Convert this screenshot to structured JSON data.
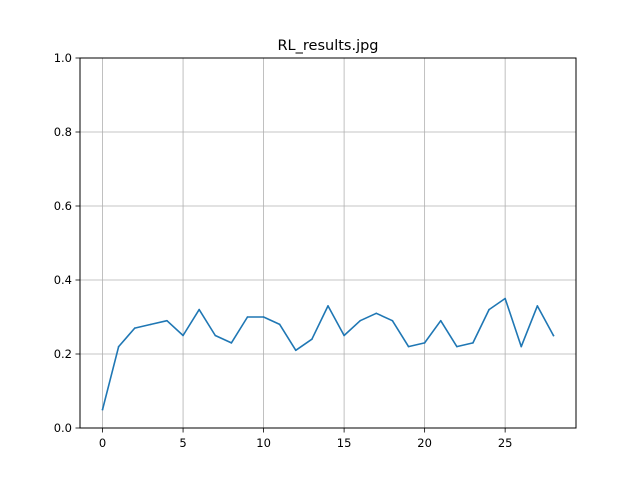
{
  "chart_data": {
    "type": "line",
    "title": "RL_results.jpg",
    "xlabel": "",
    "ylabel": "",
    "xlim": [
      -1.4,
      29.4
    ],
    "ylim": [
      0.0,
      1.0
    ],
    "x_ticks": [
      0,
      5,
      10,
      15,
      20,
      25
    ],
    "y_ticks": [
      0.0,
      0.2,
      0.4,
      0.6,
      0.8,
      1.0
    ],
    "x_tick_labels": [
      "0",
      "5",
      "10",
      "15",
      "20",
      "25"
    ],
    "y_tick_labels": [
      "0.0",
      "0.2",
      "0.4",
      "0.6",
      "0.8",
      "1.0"
    ],
    "grid": true,
    "series": [
      {
        "color": "#1f77b4",
        "x": [
          0,
          1,
          2,
          3,
          4,
          5,
          6,
          7,
          8,
          9,
          10,
          11,
          12,
          13,
          14,
          15,
          16,
          17,
          18,
          19,
          20,
          21,
          22,
          23,
          24,
          25,
          26,
          27,
          28
        ],
        "y": [
          0.05,
          0.22,
          0.27,
          0.28,
          0.29,
          0.25,
          0.32,
          0.25,
          0.23,
          0.3,
          0.3,
          0.28,
          0.21,
          0.24,
          0.33,
          0.25,
          0.29,
          0.31,
          0.29,
          0.22,
          0.23,
          0.29,
          0.22,
          0.23,
          0.32,
          0.35,
          0.22,
          0.33,
          0.25
        ]
      }
    ]
  }
}
